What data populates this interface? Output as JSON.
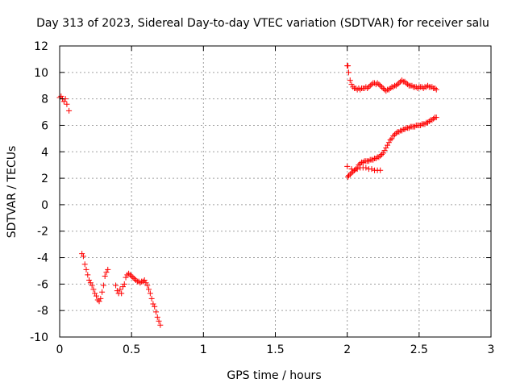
{
  "chart_data": {
    "type": "scatter",
    "title": "Day 313 of 2023, Sidereal Day-to-day VTEC variation (SDTVAR) for receiver salu",
    "xlabel": "GPS time / hours",
    "ylabel": "SDTVAR / TECUs",
    "xlim": [
      0,
      3
    ],
    "ylim": [
      -10,
      12
    ],
    "xticks": [
      0,
      0.5,
      1,
      1.5,
      2,
      2.5,
      3
    ],
    "xtick_labels": [
      "0",
      "0.5",
      "1",
      "1.5",
      "2",
      "2.5",
      "3"
    ],
    "yticks": [
      -10,
      -8,
      -6,
      -4,
      -2,
      0,
      2,
      4,
      6,
      8,
      10,
      12
    ],
    "ytick_labels": [
      "-10",
      "-8",
      "-6",
      "-4",
      "-2",
      "0",
      "2",
      "4",
      "6",
      "8",
      "10",
      "12"
    ],
    "grid": true,
    "marker": "+",
    "series": [
      {
        "name": "SDTVAR",
        "color": "#ff0000",
        "points": [
          [
            0.0,
            8.1
          ],
          [
            0.01,
            8.2
          ],
          [
            0.02,
            8.0
          ],
          [
            0.03,
            7.8
          ],
          [
            0.04,
            8.0
          ],
          [
            0.05,
            7.6
          ],
          [
            0.065,
            7.1
          ],
          [
            0.155,
            -3.7
          ],
          [
            0.165,
            -3.9
          ],
          [
            0.175,
            -4.5
          ],
          [
            0.185,
            -4.9
          ],
          [
            0.195,
            -5.3
          ],
          [
            0.205,
            -5.7
          ],
          [
            0.215,
            -5.9
          ],
          [
            0.225,
            -6.1
          ],
          [
            0.235,
            -6.4
          ],
          [
            0.245,
            -6.7
          ],
          [
            0.255,
            -6.9
          ],
          [
            0.265,
            -7.2
          ],
          [
            0.275,
            -7.3
          ],
          [
            0.285,
            -7.1
          ],
          [
            0.295,
            -6.6
          ],
          [
            0.305,
            -6.1
          ],
          [
            0.315,
            -5.4
          ],
          [
            0.325,
            -5.1
          ],
          [
            0.335,
            -4.9
          ],
          [
            0.39,
            -6.1
          ],
          [
            0.4,
            -6.5
          ],
          [
            0.41,
            -6.7
          ],
          [
            0.42,
            -6.4
          ],
          [
            0.43,
            -6.7
          ],
          [
            0.44,
            -6.2
          ],
          [
            0.45,
            -6.0
          ],
          [
            0.46,
            -5.5
          ],
          [
            0.47,
            -5.3
          ],
          [
            0.48,
            -5.2
          ],
          [
            0.49,
            -5.3
          ],
          [
            0.5,
            -5.4
          ],
          [
            0.51,
            -5.5
          ],
          [
            0.52,
            -5.6
          ],
          [
            0.53,
            -5.7
          ],
          [
            0.54,
            -5.8
          ],
          [
            0.55,
            -5.8
          ],
          [
            0.56,
            -5.9
          ],
          [
            0.57,
            -5.8
          ],
          [
            0.58,
            -5.8
          ],
          [
            0.59,
            -5.7
          ],
          [
            0.6,
            -5.9
          ],
          [
            0.61,
            -6.1
          ],
          [
            0.62,
            -6.4
          ],
          [
            0.63,
            -6.7
          ],
          [
            0.64,
            -7.1
          ],
          [
            0.65,
            -7.5
          ],
          [
            0.66,
            -7.7
          ],
          [
            0.67,
            -8.1
          ],
          [
            0.68,
            -8.5
          ],
          [
            0.69,
            -8.8
          ],
          [
            0.7,
            -9.1
          ],
          [
            2.0,
            10.5
          ],
          [
            2.005,
            10.5
          ],
          [
            2.01,
            10.0
          ],
          [
            2.02,
            9.4
          ],
          [
            2.03,
            9.1
          ],
          [
            2.04,
            8.9
          ],
          [
            2.05,
            8.8
          ],
          [
            2.06,
            8.8
          ],
          [
            2.07,
            8.7
          ],
          [
            2.08,
            8.8
          ],
          [
            2.09,
            8.7
          ],
          [
            2.1,
            8.8
          ],
          [
            2.11,
            8.8
          ],
          [
            2.12,
            8.8
          ],
          [
            2.13,
            8.9
          ],
          [
            2.14,
            8.8
          ],
          [
            2.15,
            8.9
          ],
          [
            2.16,
            9.0
          ],
          [
            2.17,
            9.1
          ],
          [
            2.18,
            9.2
          ],
          [
            2.19,
            9.2
          ],
          [
            2.2,
            9.1
          ],
          [
            2.21,
            9.2
          ],
          [
            2.22,
            9.1
          ],
          [
            2.23,
            9.0
          ],
          [
            2.24,
            8.9
          ],
          [
            2.25,
            8.8
          ],
          [
            2.26,
            8.7
          ],
          [
            2.27,
            8.6
          ],
          [
            2.28,
            8.7
          ],
          [
            2.29,
            8.7
          ],
          [
            2.3,
            8.8
          ],
          [
            2.31,
            8.9
          ],
          [
            2.32,
            8.9
          ],
          [
            2.33,
            9.0
          ],
          [
            2.34,
            9.0
          ],
          [
            2.35,
            9.1
          ],
          [
            2.36,
            9.2
          ],
          [
            2.37,
            9.3
          ],
          [
            2.38,
            9.4
          ],
          [
            2.39,
            9.3
          ],
          [
            2.4,
            9.3
          ],
          [
            2.41,
            9.2
          ],
          [
            2.42,
            9.1
          ],
          [
            2.43,
            9.0
          ],
          [
            2.44,
            9.0
          ],
          [
            2.45,
            9.0
          ],
          [
            2.46,
            8.9
          ],
          [
            2.47,
            8.9
          ],
          [
            2.48,
            8.9
          ],
          [
            2.49,
            8.8
          ],
          [
            2.5,
            8.9
          ],
          [
            2.51,
            8.9
          ],
          [
            2.52,
            8.9
          ],
          [
            2.53,
            8.8
          ],
          [
            2.54,
            8.9
          ],
          [
            2.55,
            8.9
          ],
          [
            2.56,
            9.0
          ],
          [
            2.57,
            8.9
          ],
          [
            2.58,
            8.9
          ],
          [
            2.59,
            8.9
          ],
          [
            2.6,
            8.8
          ],
          [
            2.61,
            8.8
          ],
          [
            2.62,
            8.7
          ],
          [
            2.0,
            2.9
          ],
          [
            2.005,
            2.1
          ],
          [
            2.01,
            2.2
          ],
          [
            2.02,
            2.3
          ],
          [
            2.03,
            2.4
          ],
          [
            2.04,
            2.5
          ],
          [
            2.05,
            2.6
          ],
          [
            2.06,
            2.7
          ],
          [
            2.07,
            2.8
          ],
          [
            2.08,
            3.0
          ],
          [
            2.09,
            3.1
          ],
          [
            2.1,
            3.2
          ],
          [
            2.11,
            3.2
          ],
          [
            2.12,
            3.3
          ],
          [
            2.13,
            3.3
          ],
          [
            2.14,
            3.3
          ],
          [
            2.15,
            3.3
          ],
          [
            2.16,
            3.4
          ],
          [
            2.17,
            3.4
          ],
          [
            2.18,
            3.4
          ],
          [
            2.19,
            3.5
          ],
          [
            2.2,
            3.5
          ],
          [
            2.21,
            3.6
          ],
          [
            2.22,
            3.6
          ],
          [
            2.23,
            3.7
          ],
          [
            2.24,
            3.8
          ],
          [
            2.25,
            3.9
          ],
          [
            2.26,
            4.1
          ],
          [
            2.27,
            4.3
          ],
          [
            2.28,
            4.5
          ],
          [
            2.29,
            4.7
          ],
          [
            2.3,
            4.9
          ],
          [
            2.31,
            5.0
          ],
          [
            2.32,
            5.2
          ],
          [
            2.33,
            5.3
          ],
          [
            2.34,
            5.4
          ],
          [
            2.35,
            5.5
          ],
          [
            2.36,
            5.5
          ],
          [
            2.37,
            5.6
          ],
          [
            2.38,
            5.6
          ],
          [
            2.39,
            5.7
          ],
          [
            2.4,
            5.7
          ],
          [
            2.41,
            5.8
          ],
          [
            2.42,
            5.8
          ],
          [
            2.43,
            5.8
          ],
          [
            2.44,
            5.9
          ],
          [
            2.45,
            5.9
          ],
          [
            2.46,
            5.9
          ],
          [
            2.47,
            5.9
          ],
          [
            2.48,
            6.0
          ],
          [
            2.49,
            6.0
          ],
          [
            2.5,
            6.0
          ],
          [
            2.51,
            6.0
          ],
          [
            2.52,
            6.1
          ],
          [
            2.53,
            6.1
          ],
          [
            2.54,
            6.1
          ],
          [
            2.55,
            6.2
          ],
          [
            2.56,
            6.2
          ],
          [
            2.57,
            6.3
          ],
          [
            2.58,
            6.4
          ],
          [
            2.59,
            6.4
          ],
          [
            2.6,
            6.5
          ],
          [
            2.61,
            6.6
          ],
          [
            2.62,
            6.6
          ],
          [
            2.03,
            2.7
          ],
          [
            2.05,
            2.6
          ],
          [
            2.07,
            2.7
          ],
          [
            2.09,
            2.8
          ],
          [
            2.11,
            2.8
          ],
          [
            2.13,
            2.8
          ],
          [
            2.15,
            2.7
          ],
          [
            2.17,
            2.7
          ],
          [
            2.19,
            2.6
          ],
          [
            2.21,
            2.6
          ],
          [
            2.23,
            2.6
          ]
        ]
      }
    ]
  }
}
